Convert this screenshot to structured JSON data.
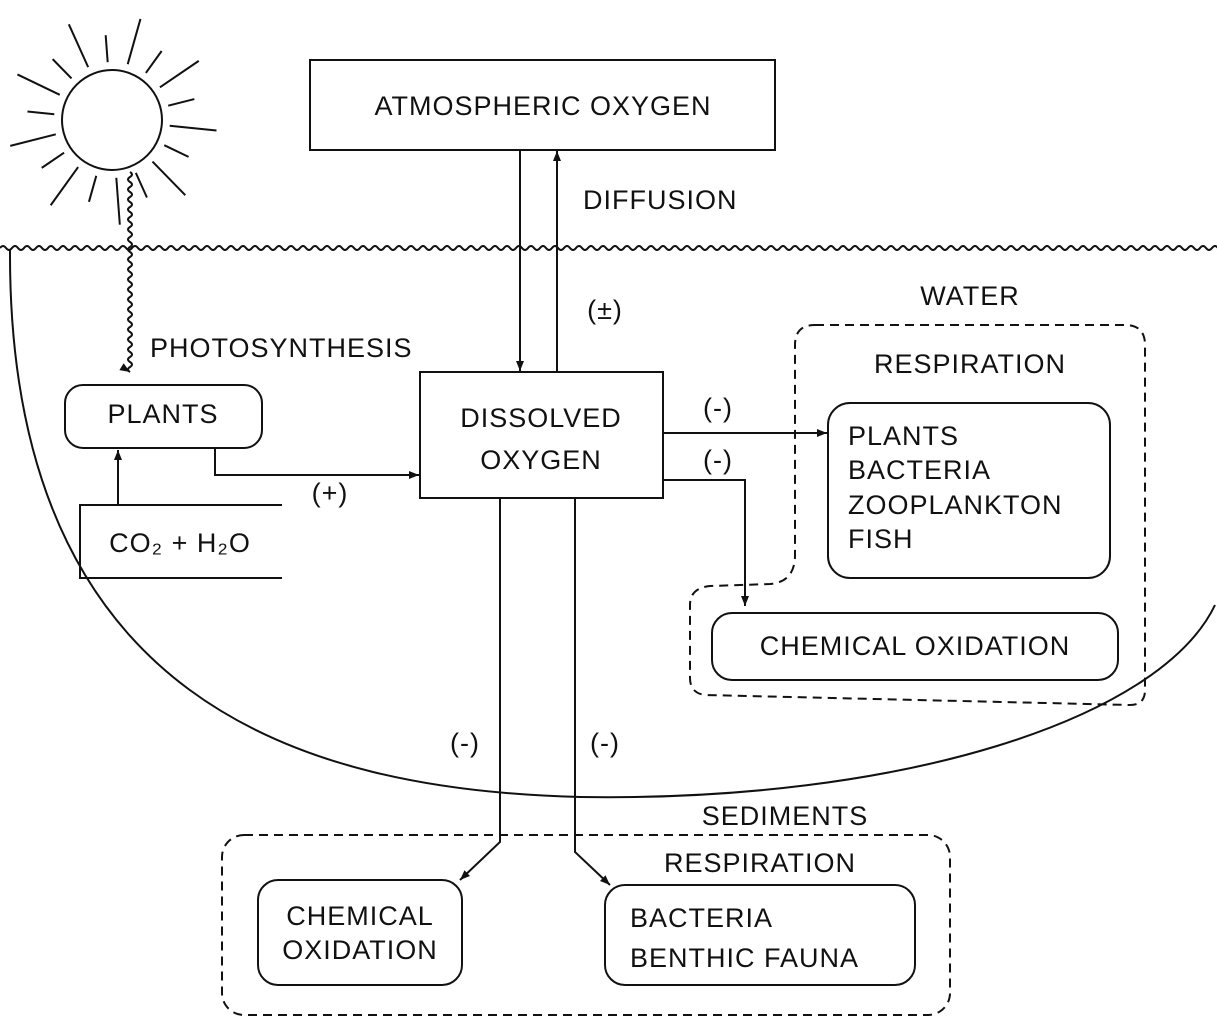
{
  "nodes": [
    {
      "lines": [
        "ATMOSPHERIC  OXYGEN"
      ]
    },
    {
      "lines": [
        "PLANTS"
      ]
    },
    {
      "lines": [
        "CO₂ + H₂O"
      ]
    },
    {
      "lines": [
        "DISSOLVED",
        "OXYGEN"
      ]
    },
    {
      "lines": [
        "PLANTS",
        "BACTERIA",
        "ZOOPLANKTON",
        "FISH"
      ]
    },
    {
      "lines": [
        "CHEMICAL  OXIDATION"
      ]
    },
    {
      "lines": [
        "CHEMICAL",
        "OXIDATION"
      ]
    },
    {
      "lines": [
        "BACTERIA",
        "BENTHIC  FAUNA"
      ]
    }
  ],
  "edge_labels": [
    "DIFFUSION",
    "(±)",
    "PHOTOSYNTHESIS",
    "(+)",
    "(-)",
    "(-)",
    "(-)",
    "(-)"
  ],
  "regions": [
    "WATER",
    "RESPIRATION",
    "SEDIMENTS",
    "RESPIRATION"
  ]
}
